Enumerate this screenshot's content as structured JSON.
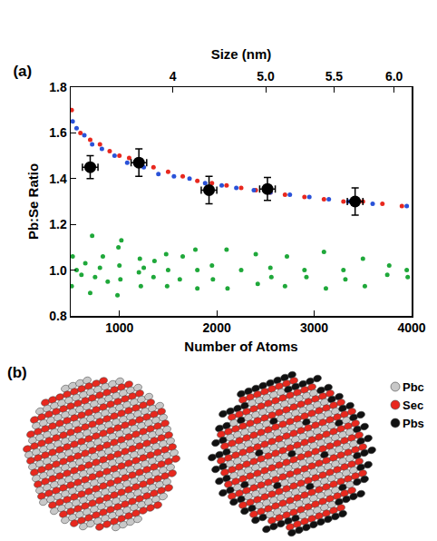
{
  "chart_data": {
    "type": "scatter",
    "title": "(a)",
    "x_label": "Number of Atoms",
    "y_label": "Pb:Se Ratio",
    "x2_label": "Size (nm)",
    "xlim": [
      500,
      4000
    ],
    "xticks": [
      1000,
      2000,
      3000,
      4000
    ],
    "x2lim": [
      500,
      4000
    ],
    "x2ticks": [
      {
        "value": 1549,
        "label": "4"
      },
      {
        "value": 2502,
        "label": "5.0"
      },
      {
        "value": 3203,
        "label": "5.5"
      },
      {
        "value": 3820,
        "label": "6.0"
      }
    ],
    "ylim": [
      0.8,
      1.8
    ],
    "yticks": [
      0.8,
      {
        "value": 1,
        "label": "1.0"
      },
      1.2,
      1.4,
      1.6,
      1.8
    ],
    "grid": false,
    "series": [
      {
        "color": "#e8281e",
        "marker": "circle",
        "x": [
          510,
          600,
          700,
          800,
          900,
          1000,
          1100,
          1200,
          1350,
          1500,
          1650,
          1800,
          1950,
          2100,
          2250,
          2400,
          2550,
          2700,
          2900,
          3100,
          3300,
          3500,
          3700,
          3900
        ],
        "values": [
          1.7,
          1.6,
          1.57,
          1.55,
          1.52,
          1.5,
          1.49,
          1.47,
          1.45,
          1.43,
          1.41,
          1.39,
          1.38,
          1.37,
          1.36,
          1.35,
          1.34,
          1.33,
          1.32,
          1.31,
          1.3,
          1.3,
          1.29,
          1.28
        ]
      },
      {
        "color": "#2a52d8",
        "marker": "circle",
        "x": [
          520,
          560,
          640,
          720,
          820,
          950,
          1080,
          1250,
          1400,
          1560,
          1720,
          1880,
          2050,
          2200,
          2380,
          2550,
          2750,
          2950,
          3150,
          3350,
          3600,
          3950
        ],
        "values": [
          1.65,
          1.62,
          1.59,
          1.55,
          1.53,
          1.5,
          1.47,
          1.45,
          1.42,
          1.41,
          1.4,
          1.38,
          1.37,
          1.36,
          1.35,
          1.34,
          1.33,
          1.32,
          1.31,
          1.3,
          1.29,
          1.28
        ]
      },
      {
        "color": "#1fa83a",
        "marker": "circle",
        "x": [
          510,
          520,
          560,
          610,
          650,
          700,
          720,
          750,
          800,
          830,
          880,
          980,
          990,
          1000,
          1010,
          1020,
          1200,
          1210,
          1220,
          1250,
          1350,
          1360,
          1480,
          1490,
          1500,
          1620,
          1650,
          1780,
          1800,
          1800,
          1950,
          1960,
          2100,
          2110,
          2250,
          2400,
          2420,
          2550,
          2560,
          2700,
          2720,
          2900,
          2920,
          3100,
          3120,
          3300,
          3320,
          3500,
          3520,
          3750,
          3770,
          3950,
          3960
        ],
        "values": [
          0.93,
          1.06,
          1.0,
          0.98,
          1.03,
          0.9,
          1.15,
          0.97,
          1.01,
          1.06,
          0.95,
          0.89,
          1.1,
          1.02,
          0.96,
          1.13,
          0.99,
          1.05,
          0.93,
          1.01,
          0.97,
          1.04,
          1.07,
          0.93,
          1.0,
          0.96,
          1.06,
          1.09,
          0.92,
          1.0,
          1.02,
          0.96,
          1.09,
          0.92,
          1.0,
          1.07,
          0.94,
          1.01,
          0.97,
          0.93,
          1.06,
          1.0,
          0.97,
          1.08,
          0.92,
          1.0,
          0.96,
          1.05,
          0.93,
          0.98,
          1.02,
          1.0,
          0.97
        ]
      },
      {
        "color": "#000000",
        "marker": "circle",
        "x": [
          700,
          1200,
          1920,
          2520,
          3420
        ],
        "values": [
          1.45,
          1.47,
          1.35,
          1.355,
          1.3
        ],
        "y_err": [
          0.05,
          0.06,
          0.06,
          0.05,
          0.06
        ],
        "x_err": [
          80,
          80,
          80,
          80,
          80
        ]
      }
    ]
  },
  "diagram": {
    "label": "(b)",
    "legend": [
      {
        "name": "Pbc",
        "color": "#c8c8c8"
      },
      {
        "name": "Sec",
        "color": "#e8281e"
      },
      {
        "name": "Pbs",
        "color": "#111111"
      }
    ]
  }
}
